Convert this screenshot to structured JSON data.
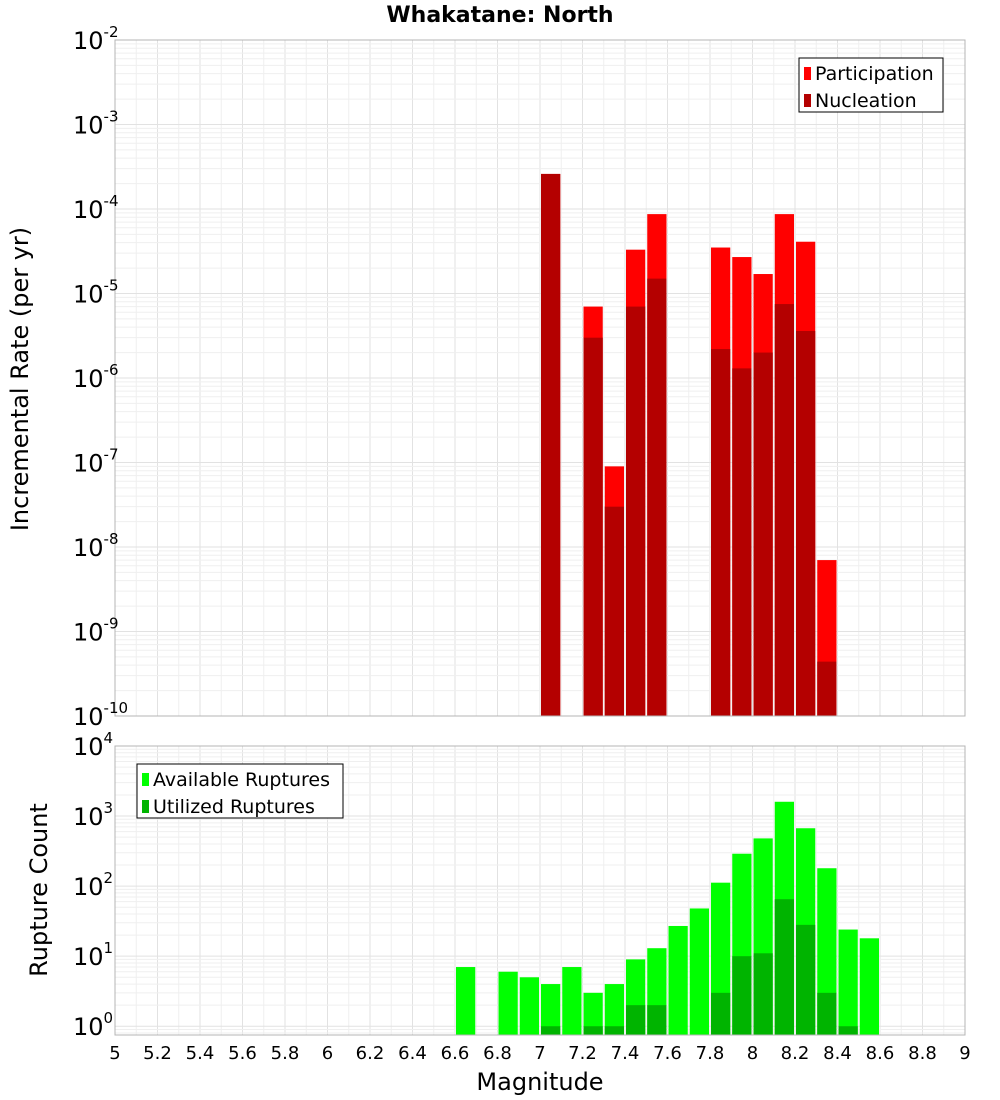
{
  "chart_data": [
    {
      "type": "bar",
      "title": "Whakatane: North",
      "xlabel": "",
      "ylabel": "Incremental Rate (per yr)",
      "yscale": "log",
      "ylim": [
        1e-10,
        0.01
      ],
      "xlim": [
        5,
        9
      ],
      "grid": true,
      "legend_position": "top-right",
      "series": [
        {
          "name": "Participation",
          "color": "#ff0000",
          "x": [
            7.05,
            7.25,
            7.35,
            7.45,
            7.55,
            7.85,
            7.95,
            8.05,
            8.15,
            8.25,
            8.35
          ],
          "values": [
            0.00026,
            7e-06,
            9e-08,
            3.3e-05,
            8.7e-05,
            3.5e-05,
            2.7e-05,
            1.7e-05,
            8.7e-05,
            4.1e-05,
            7e-09
          ]
        },
        {
          "name": "Nucleation",
          "color": "#b40000",
          "x": [
            7.05,
            7.25,
            7.35,
            7.45,
            7.55,
            7.85,
            7.95,
            8.05,
            8.15,
            8.25,
            8.35
          ],
          "values": [
            0.00026,
            3e-06,
            3e-08,
            7e-06,
            1.5e-05,
            2.2e-06,
            1.3e-06,
            2e-06,
            7.5e-06,
            3.6e-06,
            4.4e-10
          ]
        }
      ]
    },
    {
      "type": "bar",
      "title": "",
      "xlabel": "Magnitude",
      "ylabel": "Rupture Count",
      "yscale": "log",
      "ylim": [
        0.75,
        10000.0
      ],
      "xlim": [
        5,
        9
      ],
      "grid": true,
      "legend_position": "top-left",
      "series": [
        {
          "name": "Available Ruptures",
          "color": "#00ff00",
          "x": [
            6.65,
            6.85,
            6.95,
            7.05,
            7.15,
            7.25,
            7.35,
            7.45,
            7.55,
            7.65,
            7.75,
            7.85,
            7.95,
            8.05,
            8.15,
            8.25,
            8.35,
            8.45,
            8.55
          ],
          "values": [
            7,
            6,
            5,
            4,
            7,
            3,
            4,
            9,
            13,
            27,
            48,
            112,
            290,
            480,
            1600,
            670,
            180,
            24,
            18
          ]
        },
        {
          "name": "Utilized Ruptures",
          "color": "#00b400",
          "x": [
            7.05,
            7.25,
            7.35,
            7.45,
            7.55,
            7.85,
            7.95,
            8.05,
            8.15,
            8.25,
            8.35,
            8.45
          ],
          "values": [
            1,
            1,
            1,
            2,
            2,
            3,
            10,
            11,
            65,
            28,
            3,
            1
          ]
        }
      ]
    }
  ],
  "x_ticks": [
    "5",
    "5.2",
    "5.4",
    "5.6",
    "5.8",
    "6",
    "6.2",
    "6.4",
    "6.6",
    "6.8",
    "7",
    "7.2",
    "7.4",
    "7.6",
    "7.8",
    "8",
    "8.2",
    "8.4",
    "8.6",
    "8.8",
    "9"
  ],
  "top_y_exponents": [
    "-10",
    "-9",
    "-8",
    "-7",
    "-6",
    "-5",
    "-4",
    "-3",
    "-2"
  ],
  "bottom_y_exponents": [
    "0",
    "1",
    "2",
    "3",
    "4"
  ]
}
